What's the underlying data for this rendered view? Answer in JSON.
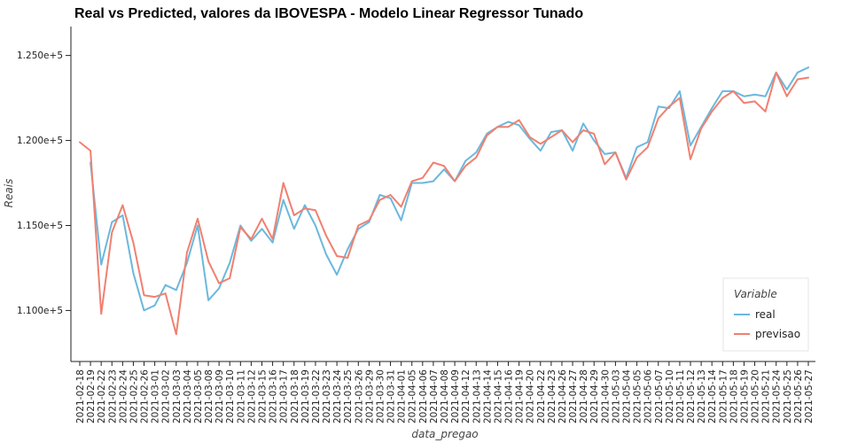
{
  "chart_data": {
    "type": "line",
    "title": "Real vs Predicted, valores da IBOVESPA - Modelo Linear Regressor Tunado",
    "xlabel": "data_pregao",
    "ylabel": "Reais",
    "ylim": [
      107000,
      126700
    ],
    "ytick_values": [
      110000,
      115000,
      120000,
      125000
    ],
    "ytick_labels": [
      "1.100e+5",
      "1.150e+5",
      "1.200e+5",
      "1.250e+5"
    ],
    "legend_title": "Variable",
    "legend_position": "lower-right",
    "grid": false,
    "categories": [
      "2021-02-18",
      "2021-02-19",
      "2021-02-22",
      "2021-02-23",
      "2021-02-24",
      "2021-02-25",
      "2021-02-26",
      "2021-03-01",
      "2021-03-02",
      "2021-03-03",
      "2021-03-04",
      "2021-03-05",
      "2021-03-08",
      "2021-03-09",
      "2021-03-10",
      "2021-03-11",
      "2021-03-12",
      "2021-03-15",
      "2021-03-16",
      "2021-03-17",
      "2021-03-18",
      "2021-03-19",
      "2021-03-22",
      "2021-03-23",
      "2021-03-24",
      "2021-03-25",
      "2021-03-26",
      "2021-03-29",
      "2021-03-30",
      "2021-03-31",
      "2021-04-01",
      "2021-04-05",
      "2021-04-06",
      "2021-04-07",
      "2021-04-08",
      "2021-04-09",
      "2021-04-12",
      "2021-04-13",
      "2021-04-14",
      "2021-04-15",
      "2021-04-16",
      "2021-04-19",
      "2021-04-20",
      "2021-04-22",
      "2021-04-23",
      "2021-04-26",
      "2021-04-27",
      "2021-04-28",
      "2021-04-29",
      "2021-04-30",
      "2021-05-03",
      "2021-05-04",
      "2021-05-05",
      "2021-05-06",
      "2021-05-07",
      "2021-05-10",
      "2021-05-11",
      "2021-05-12",
      "2021-05-13",
      "2021-05-14",
      "2021-05-17",
      "2021-05-18",
      "2021-05-19",
      "2021-05-20",
      "2021-05-21",
      "2021-05-24",
      "2021-05-25",
      "2021-05-26",
      "2021-05-27"
    ],
    "series": [
      {
        "name": "real",
        "color": "#6bb8dd",
        "values": [
          null,
          118700,
          112700,
          115200,
          115600,
          112200,
          110000,
          110300,
          111500,
          111200,
          112800,
          115000,
          110600,
          111300,
          112800,
          115000,
          114100,
          114800,
          114000,
          116500,
          114800,
          116200,
          115000,
          113300,
          112100,
          113600,
          114800,
          115200,
          116800,
          116600,
          115300,
          117500,
          117500,
          117600,
          118300,
          117600,
          118800,
          119300,
          120400,
          120800,
          121100,
          120900,
          120100,
          119400,
          120500,
          120600,
          119400,
          121000,
          120000,
          119200,
          119300,
          117800,
          119600,
          119900,
          122000,
          121900,
          122900,
          119700,
          120800,
          121900,
          122900,
          122900,
          122600,
          122700,
          122600,
          124000,
          123000,
          124000,
          124300
        ]
      },
      {
        "name": "previsao",
        "color": "#f08070",
        "values": [
          119900,
          119400,
          109800,
          114600,
          116200,
          114000,
          110900,
          110800,
          111000,
          108600,
          113400,
          115400,
          112900,
          111600,
          111900,
          114900,
          114200,
          115400,
          114200,
          117500,
          115600,
          116000,
          115900,
          114400,
          113200,
          113100,
          115000,
          115300,
          116500,
          116800,
          116100,
          117600,
          117800,
          118700,
          118500,
          117600,
          118500,
          119000,
          120300,
          120800,
          120800,
          121200,
          120200,
          119800,
          120200,
          120600,
          119900,
          120600,
          120400,
          118600,
          119300,
          117700,
          119000,
          119600,
          121300,
          122000,
          122500,
          118900,
          120700,
          121700,
          122500,
          122900,
          122200,
          122300,
          121700,
          124000,
          122600,
          123600,
          123700
        ]
      }
    ]
  }
}
